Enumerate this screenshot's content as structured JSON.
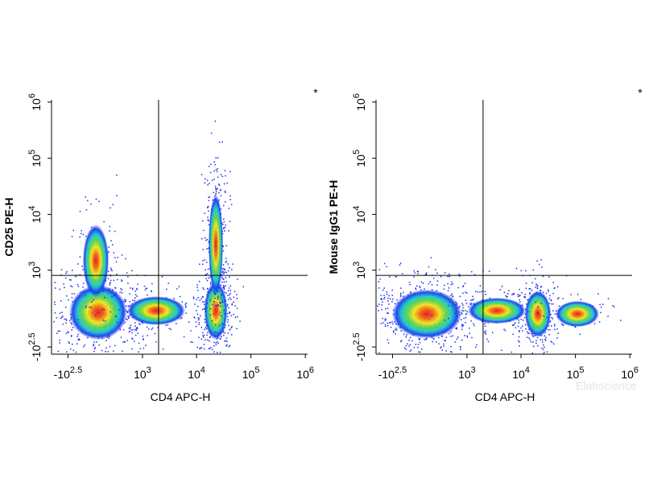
{
  "chart_data": [
    {
      "type": "scatter",
      "xlabel": "CD4 APC-H",
      "ylabel": "CD25 PE-H",
      "annotation": "*",
      "scale": "asinh",
      "cofactor": 250,
      "xlim": [
        -700,
        1100000
      ],
      "ylim": [
        -450,
        1100000
      ],
      "xticks": [
        {
          "value": -316,
          "label": "-10",
          "exponent": "2.5"
        },
        {
          "value": 1000,
          "label": "10",
          "exponent": "3"
        },
        {
          "value": 10000,
          "label": "10",
          "exponent": "4"
        },
        {
          "value": 100000,
          "label": "10",
          "exponent": "5"
        },
        {
          "value": 1000000,
          "label": "10",
          "exponent": "6"
        }
      ],
      "yticks": [
        {
          "value": -316,
          "label": "-10",
          "exponent": "2.5"
        },
        {
          "value": 1000,
          "label": "10",
          "exponent": "3"
        },
        {
          "value": 10000,
          "label": "10",
          "exponent": "4"
        },
        {
          "value": 100000,
          "label": "10",
          "exponent": "5"
        },
        {
          "value": 1000000,
          "label": "10",
          "exponent": "6"
        }
      ],
      "gate": {
        "x": 2000,
        "y": 800
      }
    },
    {
      "type": "scatter",
      "xlabel": "CD4 APC-H",
      "ylabel": "Mouse IgG1 PE-H",
      "annotation": "*",
      "watermark": "Elabscience",
      "scale": "asinh",
      "cofactor": 250,
      "xlim": [
        -700,
        1100000
      ],
      "ylim": [
        -450,
        1100000
      ],
      "xticks": [
        {
          "value": -316,
          "label": "-10",
          "exponent": "2.5"
        },
        {
          "value": 1000,
          "label": "10",
          "exponent": "3"
        },
        {
          "value": 10000,
          "label": "10",
          "exponent": "4"
        },
        {
          "value": 100000,
          "label": "10",
          "exponent": "5"
        },
        {
          "value": 1000000,
          "label": "10",
          "exponent": "6"
        }
      ],
      "yticks": [
        {
          "value": -316,
          "label": "-10",
          "exponent": "2.5"
        },
        {
          "value": 1000,
          "label": "10",
          "exponent": "3"
        },
        {
          "value": 10000,
          "label": "10",
          "exponent": "4"
        },
        {
          "value": 100000,
          "label": "10",
          "exponent": "5"
        },
        {
          "value": 1000000,
          "label": "10",
          "exponent": "6"
        }
      ],
      "gate": {
        "x": 2000,
        "y": 800
      }
    }
  ]
}
